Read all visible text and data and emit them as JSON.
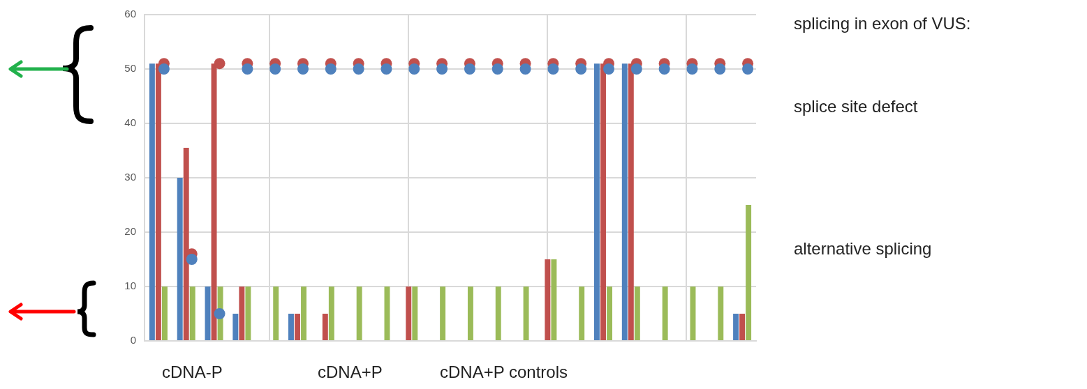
{
  "chart_data": {
    "type": "bar",
    "categories": [
      null,
      null,
      null,
      null,
      null,
      null,
      null,
      null,
      null,
      null,
      null,
      null,
      null,
      null,
      null,
      null,
      null,
      null,
      null,
      null,
      null,
      null
    ],
    "ylim": [
      0,
      60
    ],
    "yticks": [
      0,
      10,
      20,
      30,
      40,
      50,
      60
    ],
    "grid": true,
    "tick_labels": "y",
    "marker": "circle",
    "series": [
      {
        "color": "#4f81bd",
        "values": [
          51,
          30,
          10,
          5,
          0,
          5,
          0,
          0,
          0,
          0,
          0,
          0,
          0,
          0,
          0,
          0,
          51,
          51,
          0,
          0,
          0,
          5
        ]
      },
      {
        "color": "#c0504d",
        "values": [
          51,
          35.5,
          51,
          10,
          0,
          5,
          5,
          0,
          0,
          10,
          0,
          0,
          0,
          0,
          15,
          0,
          51,
          51,
          0,
          0,
          0,
          5
        ]
      },
      {
        "color": "#9bbb59",
        "values": [
          10,
          10,
          10,
          10,
          10,
          10,
          10,
          10,
          10,
          10,
          10,
          10,
          10,
          10,
          15,
          10,
          10,
          10,
          10,
          10,
          10,
          25
        ]
      },
      {
        "type": "scatter",
        "color": "#4f81bd",
        "values": [
          50,
          15,
          5,
          50,
          50,
          50,
          50,
          50,
          50,
          50,
          50,
          50,
          50,
          50,
          50,
          50,
          50,
          50,
          50,
          50,
          50,
          50
        ]
      },
      {
        "type": "scatter",
        "color": "#c0504d",
        "values": [
          51,
          16,
          51,
          51,
          51,
          51,
          51,
          51,
          51,
          51,
          51,
          51,
          51,
          51,
          51,
          51,
          51,
          51,
          51,
          51,
          51,
          51
        ]
      }
    ],
    "annotations": [
      "cDNA-P",
      "cDNA+P",
      "cDNA+P controls",
      "splicing in exon of VUS:",
      "splice site defect",
      "alternative splicing"
    ]
  }
}
